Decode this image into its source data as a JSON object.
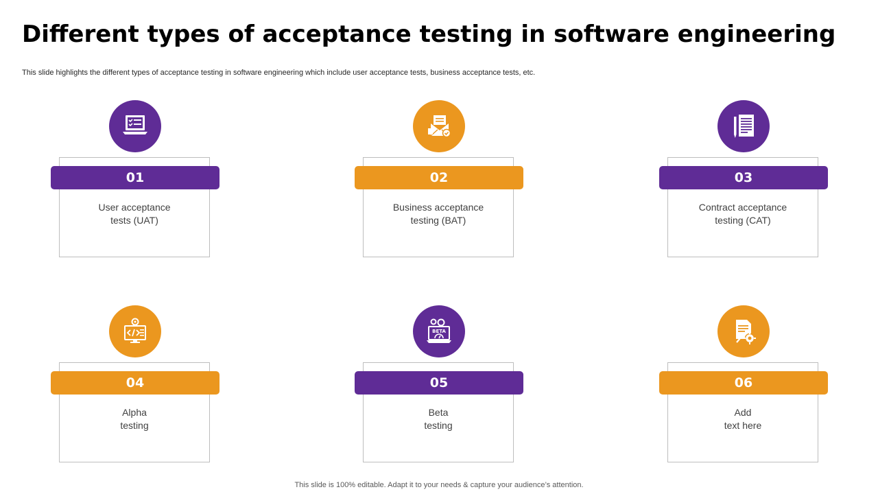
{
  "slide": {
    "title": "Different types of acceptance testing in software engineering",
    "subtitle": "This slide highlights the different types of acceptance testing in software engineering which include user acceptance tests, business acceptance tests, etc.",
    "footer": "This slide is 100% editable. Adapt it to your needs & capture your audience’s attention."
  },
  "colors": {
    "purple": "#5f2c96",
    "orange": "#eb971f"
  },
  "cards": [
    {
      "number": "01",
      "line1": "User acceptance",
      "line2": "tests (UAT)",
      "icon": "laptop-checklist-icon",
      "color": "purple"
    },
    {
      "number": "02",
      "line1": "Business acceptance",
      "line2": "testing (BAT)",
      "icon": "envelope-check-icon",
      "color": "orange"
    },
    {
      "number": "03",
      "line1": "Contract acceptance",
      "line2": "testing (CAT)",
      "icon": "contract-document-icon",
      "color": "purple"
    },
    {
      "number": "04",
      "line1": "Alpha",
      "line2": "testing",
      "icon": "code-monitor-icon",
      "color": "orange"
    },
    {
      "number": "05",
      "line1": "Beta",
      "line2": "testing",
      "icon": "beta-laptop-icon",
      "color": "purple",
      "icon_text": "BETA"
    },
    {
      "number": "06",
      "line1": "Add",
      "line2": "text here",
      "icon": "document-gear-icon",
      "color": "orange"
    }
  ]
}
